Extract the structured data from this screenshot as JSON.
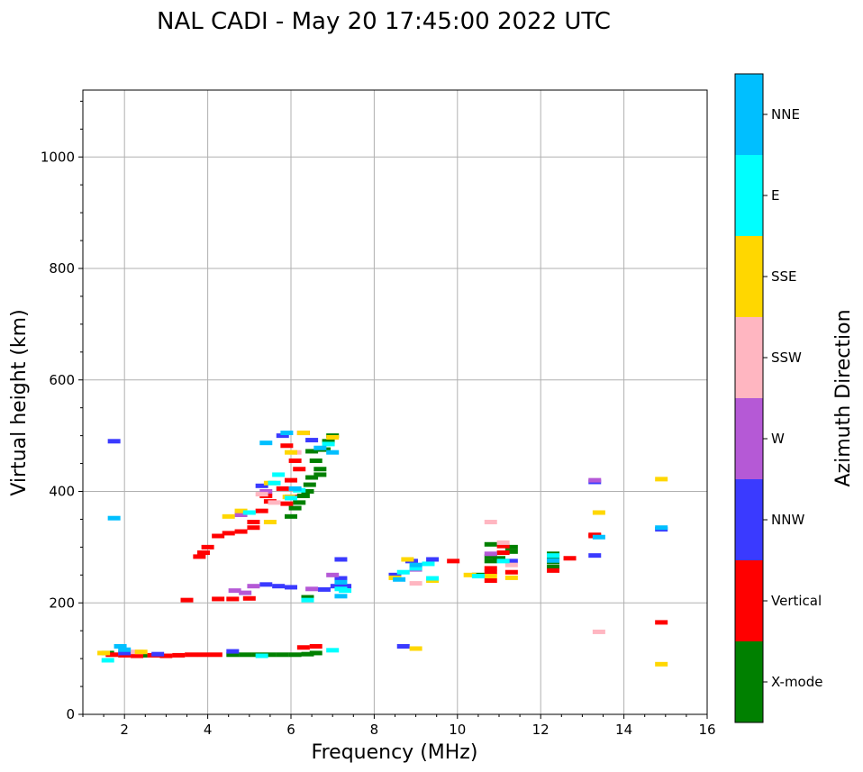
{
  "chart_data": {
    "type": "scatter",
    "title": "NAL CADI - May 20 17:45:00 2022 UTC",
    "xlabel": "Frequency (MHz)",
    "ylabel": "Virtual height (km)",
    "xlim": [
      1,
      16
    ],
    "ylim": [
      0,
      1120
    ],
    "grid": true,
    "xticks": [
      2,
      4,
      6,
      8,
      10,
      12,
      14,
      16
    ],
    "yticks": [
      0,
      200,
      400,
      600,
      800,
      1000
    ],
    "colorbar": {
      "label": "Azimuth Direction",
      "categories": [
        {
          "name": "X-mode",
          "color": "#008000"
        },
        {
          "name": "Vertical",
          "color": "#ff0000"
        },
        {
          "name": "NNW",
          "color": "#3a3aff"
        },
        {
          "name": "W",
          "color": "#b559d6"
        },
        {
          "name": "SSW",
          "color": "#ffb6c1"
        },
        {
          "name": "SSE",
          "color": "#ffd700"
        },
        {
          "name": "E",
          "color": "#00ffff"
        },
        {
          "name": "NNE",
          "color": "#00bfff"
        }
      ]
    },
    "series": [
      {
        "name": "X-mode",
        "points": [
          [
            1.6,
            110
          ],
          [
            2.4,
            106
          ],
          [
            4.6,
            107
          ],
          [
            4.9,
            107
          ],
          [
            5.2,
            107
          ],
          [
            5.5,
            107
          ],
          [
            5.8,
            107
          ],
          [
            6.1,
            107
          ],
          [
            6.4,
            108
          ],
          [
            6.6,
            110
          ],
          [
            6.0,
            355
          ],
          [
            6.1,
            370
          ],
          [
            6.2,
            380
          ],
          [
            6.3,
            392
          ],
          [
            6.4,
            400
          ],
          [
            6.45,
            412
          ],
          [
            6.5,
            425
          ],
          [
            6.7,
            430
          ],
          [
            6.7,
            440
          ],
          [
            6.6,
            455
          ],
          [
            6.8,
            475
          ],
          [
            6.9,
            490
          ],
          [
            7.0,
            500
          ],
          [
            6.5,
            472
          ],
          [
            6.4,
            210
          ],
          [
            10.8,
            305
          ],
          [
            10.8,
            283
          ],
          [
            10.8,
            275
          ],
          [
            11.3,
            300
          ],
          [
            11.3,
            292
          ],
          [
            12.3,
            288
          ],
          [
            12.3,
            282
          ],
          [
            12.3,
            274
          ],
          [
            12.3,
            265
          ],
          [
            10.5,
            250
          ],
          [
            11.0,
            280
          ]
        ]
      },
      {
        "name": "Vertical",
        "points": [
          [
            1.7,
            107
          ],
          [
            2.0,
            106
          ],
          [
            2.3,
            105
          ],
          [
            2.7,
            106
          ],
          [
            3.0,
            105
          ],
          [
            3.3,
            106
          ],
          [
            3.6,
            107
          ],
          [
            3.9,
            107
          ],
          [
            4.2,
            107
          ],
          [
            3.8,
            283
          ],
          [
            3.9,
            290
          ],
          [
            4.0,
            300
          ],
          [
            4.25,
            320
          ],
          [
            4.5,
            325
          ],
          [
            4.8,
            328
          ],
          [
            5.1,
            335
          ],
          [
            5.1,
            345
          ],
          [
            5.3,
            365
          ],
          [
            5.5,
            382
          ],
          [
            5.4,
            392
          ],
          [
            5.8,
            405
          ],
          [
            5.9,
            378
          ],
          [
            6.0,
            390
          ],
          [
            6.0,
            420
          ],
          [
            6.2,
            440
          ],
          [
            6.1,
            455
          ],
          [
            5.9,
            482
          ],
          [
            6.3,
            505
          ],
          [
            3.5,
            205
          ],
          [
            4.25,
            207
          ],
          [
            4.6,
            207
          ],
          [
            5.0,
            208
          ],
          [
            6.3,
            120
          ],
          [
            6.6,
            122
          ],
          [
            9.9,
            275
          ],
          [
            10.8,
            262
          ],
          [
            10.8,
            255
          ],
          [
            10.8,
            240
          ],
          [
            11.1,
            302
          ],
          [
            11.3,
            255
          ],
          [
            12.3,
            258
          ],
          [
            12.7,
            280
          ],
          [
            13.3,
            322
          ],
          [
            13.3,
            320
          ],
          [
            14.9,
            165
          ],
          [
            11.1,
            290
          ]
        ]
      },
      {
        "name": "NNW",
        "points": [
          [
            1.75,
            490
          ],
          [
            2.0,
            110
          ],
          [
            2.8,
            108
          ],
          [
            4.6,
            113
          ],
          [
            5.4,
            233
          ],
          [
            5.7,
            230
          ],
          [
            6.0,
            228
          ],
          [
            6.8,
            224
          ],
          [
            7.2,
            278
          ],
          [
            7.2,
            244
          ],
          [
            7.3,
            230
          ],
          [
            8.7,
            122
          ],
          [
            8.5,
            250
          ],
          [
            8.9,
            275
          ],
          [
            9.4,
            278
          ],
          [
            11.3,
            275
          ],
          [
            13.3,
            417
          ],
          [
            13.3,
            285
          ],
          [
            14.9,
            332
          ],
          [
            5.3,
            410
          ],
          [
            5.8,
            500
          ],
          [
            6.5,
            492
          ],
          [
            7.1,
            230
          ]
        ]
      },
      {
        "name": "W",
        "points": [
          [
            4.65,
            222
          ],
          [
            4.9,
            218
          ],
          [
            5.1,
            230
          ],
          [
            6.5,
            225
          ],
          [
            7.0,
            250
          ],
          [
            9.0,
            260
          ],
          [
            10.8,
            288
          ],
          [
            13.3,
            420
          ],
          [
            4.8,
            358
          ],
          [
            5.4,
            400
          ]
        ]
      },
      {
        "name": "SSW",
        "points": [
          [
            2.3,
            112
          ],
          [
            5.3,
            395
          ],
          [
            5.6,
            380
          ],
          [
            6.1,
            470
          ],
          [
            10.8,
            345
          ],
          [
            11.1,
            308
          ],
          [
            11.3,
            268
          ],
          [
            13.4,
            148
          ],
          [
            9.0,
            235
          ]
        ]
      },
      {
        "name": "SSE",
        "points": [
          [
            1.5,
            110
          ],
          [
            2.4,
            112
          ],
          [
            4.5,
            355
          ],
          [
            4.8,
            365
          ],
          [
            5.5,
            415
          ],
          [
            5.5,
            345
          ],
          [
            5.95,
            390
          ],
          [
            6.0,
            470
          ],
          [
            7.0,
            497
          ],
          [
            8.5,
            245
          ],
          [
            8.8,
            278
          ],
          [
            9.0,
            118
          ],
          [
            9.4,
            240
          ],
          [
            10.3,
            250
          ],
          [
            10.8,
            248
          ],
          [
            11.3,
            245
          ],
          [
            13.4,
            362
          ],
          [
            14.9,
            422
          ],
          [
            14.9,
            90
          ],
          [
            6.3,
            505
          ]
        ]
      },
      {
        "name": "E",
        "points": [
          [
            1.6,
            97
          ],
          [
            5.0,
            362
          ],
          [
            5.6,
            415
          ],
          [
            5.7,
            430
          ],
          [
            6.0,
            388
          ],
          [
            6.2,
            402
          ],
          [
            6.9,
            485
          ],
          [
            7.2,
            225
          ],
          [
            7.3,
            222
          ],
          [
            9.0,
            262
          ],
          [
            9.3,
            270
          ],
          [
            9.4,
            244
          ],
          [
            10.5,
            248
          ],
          [
            11.1,
            275
          ],
          [
            12.3,
            285
          ],
          [
            7.0,
            115
          ],
          [
            6.4,
            205
          ],
          [
            5.3,
            105
          ],
          [
            8.7,
            255
          ]
        ]
      },
      {
        "name": "NNE",
        "points": [
          [
            1.75,
            352
          ],
          [
            1.9,
            122
          ],
          [
            2.0,
            116
          ],
          [
            5.4,
            487
          ],
          [
            5.9,
            505
          ],
          [
            6.7,
            478
          ],
          [
            7.0,
            470
          ],
          [
            7.2,
            212
          ],
          [
            7.2,
            237
          ],
          [
            9.0,
            268
          ],
          [
            8.6,
            242
          ],
          [
            12.3,
            276
          ],
          [
            13.4,
            318
          ],
          [
            14.9,
            335
          ],
          [
            6.1,
            405
          ]
        ]
      }
    ]
  }
}
